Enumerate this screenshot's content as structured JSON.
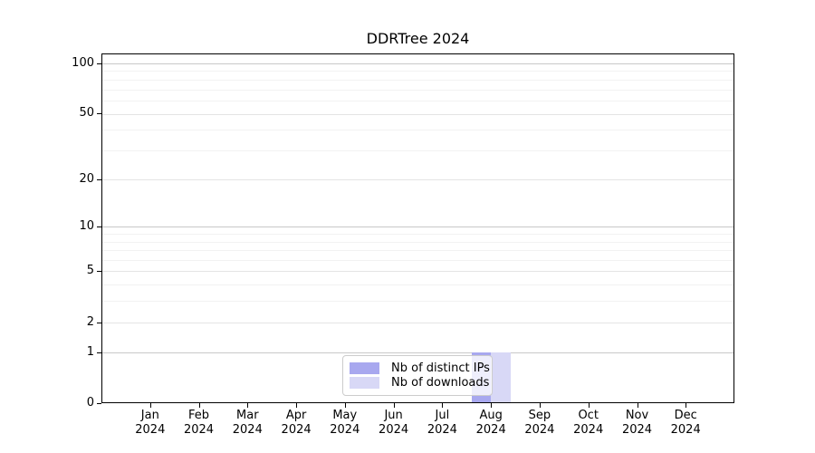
{
  "chart_data": {
    "type": "bar",
    "title": "DDRTree 2024",
    "categories": [
      "Jan",
      "Feb",
      "Mar",
      "Apr",
      "May",
      "Jun",
      "Jul",
      "Aug",
      "Sep",
      "Oct",
      "Nov",
      "Dec"
    ],
    "category_year": "2024",
    "series": [
      {
        "name": "Nb of distinct IPs",
        "color": "#a8a8ef",
        "values": [
          0,
          0,
          0,
          0,
          0,
          0,
          0,
          1,
          0,
          0,
          0,
          0
        ]
      },
      {
        "name": "Nb of downloads",
        "color": "#d8d8f6",
        "values": [
          0,
          0,
          0,
          0,
          0,
          0,
          0,
          1,
          0,
          0,
          0,
          0
        ]
      }
    ],
    "xlabel": "",
    "ylabel": "",
    "y_scale": "log1p",
    "y_max": 114.6,
    "y_ticks": [
      0,
      1,
      2,
      5,
      10,
      20,
      50,
      100
    ],
    "y_decade_gridlines": [
      1,
      10,
      100
    ],
    "y_mid_gridlines": [
      2,
      5,
      20,
      50
    ],
    "y_minor_gridlines": [
      3,
      4,
      6,
      7,
      8,
      9,
      30,
      40,
      60,
      70,
      80,
      90
    ],
    "grid": true,
    "legend": {
      "position": "lower-center"
    },
    "colors": {
      "grid_decade": "#c8c8c8",
      "grid_mid": "#e4e4e4",
      "grid_minor": "#f2f2f2",
      "axis": "#000000",
      "background": "#ffffff"
    }
  }
}
